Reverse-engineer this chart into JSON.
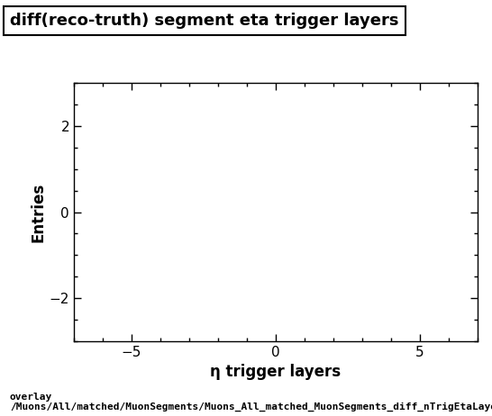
{
  "title": "diff(reco-truth) segment eta trigger layers",
  "xlabel": "η trigger layers",
  "ylabel": "Entries",
  "xlim": [
    -7,
    7
  ],
  "ylim": [
    -3,
    3
  ],
  "xticks": [
    -5,
    0,
    5
  ],
  "yticks": [
    -2,
    0,
    2
  ],
  "x_minor_tick_spacing": 1,
  "y_minor_tick_spacing": 0.5,
  "background_color": "#ffffff",
  "plot_bg_color": "#ffffff",
  "caption_line1": "overlay",
  "caption_line2": "/Muons/All/matched/MuonSegments/Muons_All_matched_MuonSegments_diff_nTrigEtaLayersvsEta",
  "title_fontsize": 13,
  "axis_label_fontsize": 12,
  "tick_label_fontsize": 11,
  "caption_fontsize": 8
}
